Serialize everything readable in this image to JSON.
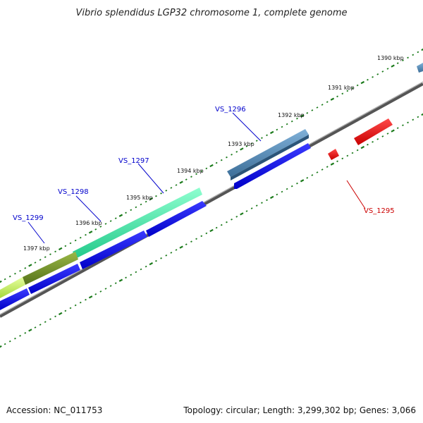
{
  "header": {
    "title": "Vibrio splendidus LGP32 chromosome 1, complete genome"
  },
  "footer": {
    "accession": "Accession: NC_011753",
    "summary": "Topology: circular; Length: 3,299,302 bp; Genes: 3,066"
  },
  "kbp_ticks": [
    {
      "label": "1390 kbp",
      "at_kbp": 1390
    },
    {
      "label": "1391 kbp",
      "at_kbp": 1391
    },
    {
      "label": "1392 kbp",
      "at_kbp": 1392
    },
    {
      "label": "1393 kbp",
      "at_kbp": 1393
    },
    {
      "label": "1394 kbp",
      "at_kbp": 1394
    },
    {
      "label": "1395 kbp",
      "at_kbp": 1395
    },
    {
      "label": "1396 kbp",
      "at_kbp": 1396
    },
    {
      "label": "1397 kbp",
      "at_kbp": 1397
    }
  ],
  "gene_labels": [
    {
      "text": "VS_1296",
      "color": "#0000cc"
    },
    {
      "text": "VS_1297",
      "color": "#0000cc"
    },
    {
      "text": "VS_1298",
      "color": "#0000cc"
    },
    {
      "text": "VS_1299",
      "color": "#0000cc"
    },
    {
      "text": "VS_1295",
      "color": "#cc0000"
    }
  ],
  "colors": {
    "backbone": "#777777",
    "tick": "#1a7a1a",
    "cds": "#0000ee",
    "reverse_feature": "#ee0000",
    "gene_vs1296": "#4682b4",
    "gene_vs1297": "#33e69a",
    "gene_vs1298": "#6b8e23",
    "gene_vs1299": "#c6f55c"
  }
}
